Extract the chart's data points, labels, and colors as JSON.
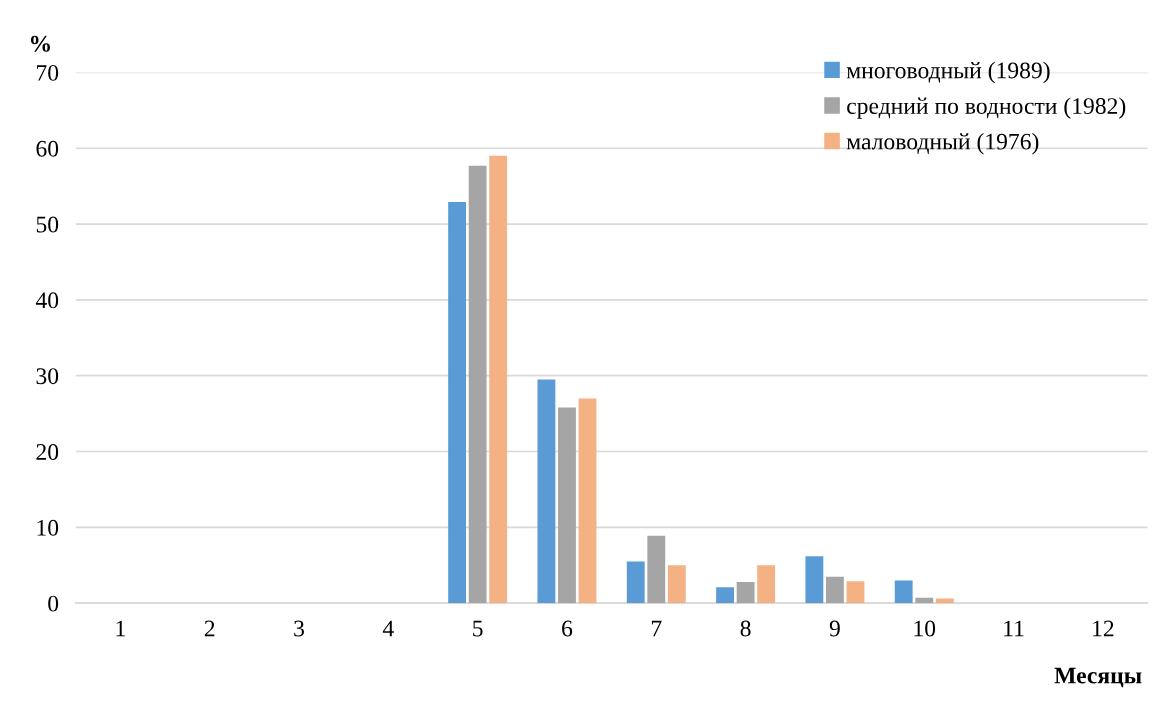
{
  "chart_data": {
    "type": "bar",
    "xlabel": "Месяцы",
    "ylabel": "%",
    "categories": [
      "1",
      "2",
      "3",
      "4",
      "5",
      "6",
      "7",
      "8",
      "9",
      "10",
      "11",
      "12"
    ],
    "series": [
      {
        "name": "многоводный (1989)",
        "color": "#5b9bd5",
        "values": [
          0,
          0,
          0,
          0,
          52.9,
          29.5,
          5.5,
          2.1,
          6.2,
          3.0,
          0,
          0
        ]
      },
      {
        "name": "средний по водности (1982)",
        "color": "#a5a5a5",
        "values": [
          0,
          0,
          0,
          0,
          57.7,
          25.8,
          8.9,
          2.8,
          3.5,
          0.7,
          0,
          0
        ]
      },
      {
        "name": "маловодный (1976)",
        "color": "#f4b183",
        "values": [
          0,
          0,
          0,
          0,
          59.0,
          27.0,
          5.0,
          5.0,
          2.9,
          0.6,
          0,
          0
        ]
      }
    ],
    "ylim": [
      0,
      70
    ],
    "yticks": [
      0,
      10,
      20,
      30,
      40,
      50,
      60,
      70
    ],
    "grid": "y",
    "legend": "top right"
  }
}
